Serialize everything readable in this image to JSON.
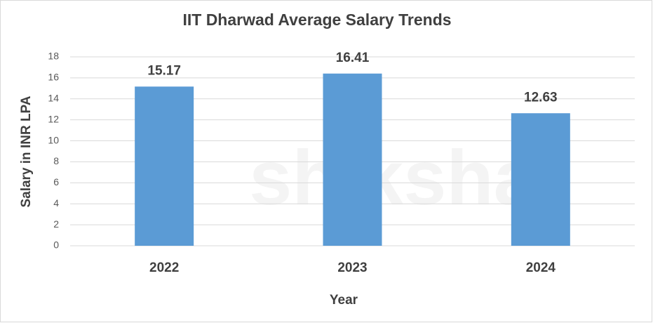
{
  "chart_data": {
    "type": "bar",
    "title": "IIT Dharwad Average Salary Trends",
    "x_label": "Year",
    "y_label": "Salary in INR LPA",
    "watermark": "shiksha",
    "categories": [
      "2022",
      "2023",
      "2024"
    ],
    "values": [
      15.17,
      16.41,
      12.63
    ],
    "color": "#5b9bd5",
    "ylim": [
      0,
      18
    ],
    "yticks": [
      0,
      2,
      4,
      6,
      8,
      10,
      12,
      14,
      16,
      18
    ],
    "grid": true
  }
}
